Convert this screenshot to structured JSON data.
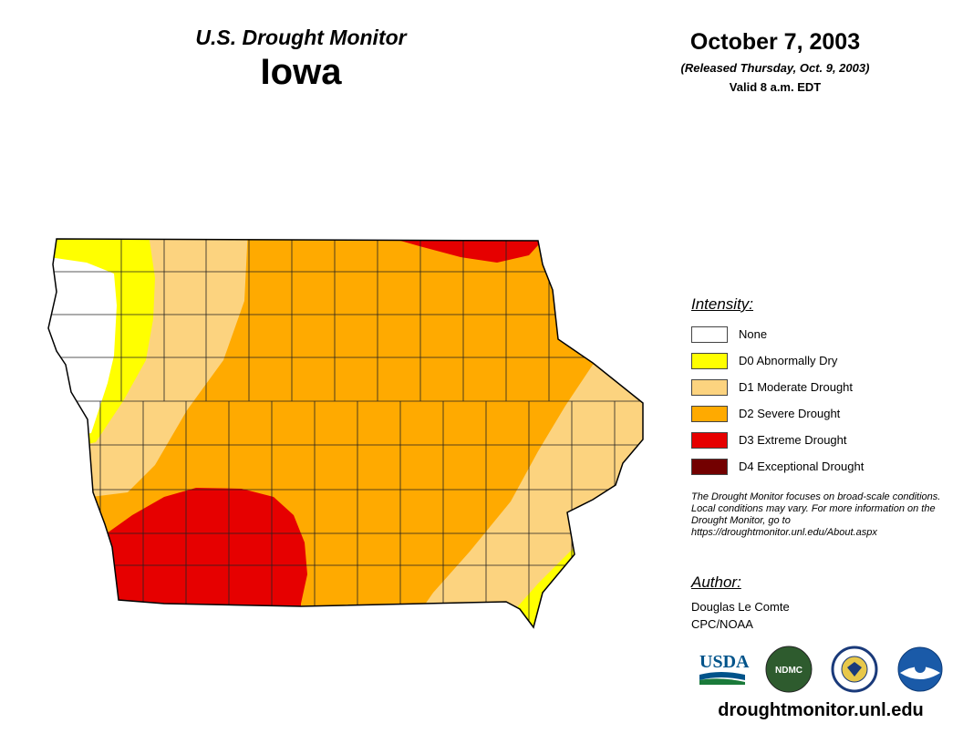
{
  "header": {
    "subtitle": "U.S. Drought Monitor",
    "state": "Iowa",
    "date": "October 7, 2003",
    "released": "(Released Thursday, Oct. 9, 2003)",
    "valid": "Valid 8 a.m. EDT"
  },
  "legend": {
    "title": "Intensity:",
    "items": [
      {
        "label": "None",
        "color": "#ffffff"
      },
      {
        "label": "D0 Abnormally Dry",
        "color": "#ffff00"
      },
      {
        "label": "D1 Moderate Drought",
        "color": "#fcd37f"
      },
      {
        "label": "D2 Severe Drought",
        "color": "#ffaa00"
      },
      {
        "label": "D3 Extreme Drought",
        "color": "#e60000"
      },
      {
        "label": "D4 Exceptional Drought",
        "color": "#730000"
      }
    ]
  },
  "note": "The Drought Monitor focuses on broad-scale conditions. Local conditions may vary. For more information on the Drought Monitor, go to https://droughtmonitor.unl.edu/About.aspx",
  "author": {
    "title": "Author:",
    "name": "Douglas Le Comte",
    "org": "CPC/NOAA"
  },
  "logos": {
    "usda": "USDA",
    "ndmc": "NDMC",
    "doc": "DOC",
    "noaa": "NOAA"
  },
  "website": "droughtmonitor.unl.edu"
}
